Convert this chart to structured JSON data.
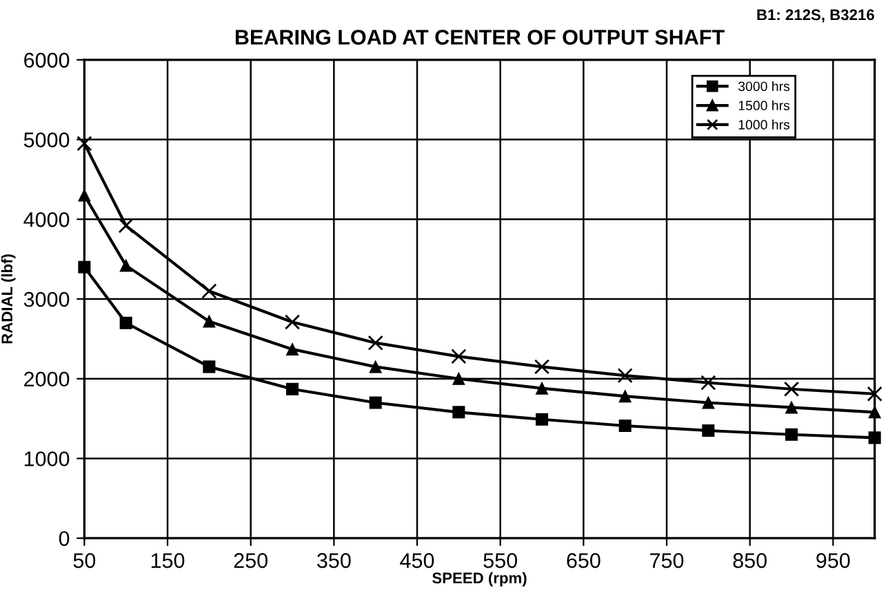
{
  "chart_data": {
    "type": "line",
    "title": "BEARING LOAD AT CENTER OF OUTPUT SHAFT",
    "subtitle": "B1: 212S, B3216",
    "xlabel": "SPEED (rpm)",
    "ylabel": "RADIAL (lbf)",
    "x": [
      50,
      100,
      200,
      300,
      400,
      500,
      600,
      700,
      800,
      900,
      1000
    ],
    "series": [
      {
        "name": "3000 hrs",
        "color": "#000000",
        "marker": "square",
        "values": [
          3400,
          2700,
          2150,
          1870,
          1700,
          1580,
          1490,
          1410,
          1350,
          1300,
          1260
        ]
      },
      {
        "name": "1500 hrs",
        "color": "#000000",
        "marker": "triangle",
        "values": [
          4300,
          3420,
          2720,
          2370,
          2150,
          2000,
          1880,
          1780,
          1700,
          1640,
          1580
        ]
      },
      {
        "name": "1000 hrs",
        "color": "#000000",
        "marker": "cross",
        "values": [
          4950,
          3920,
          3100,
          2710,
          2450,
          2280,
          2150,
          2040,
          1950,
          1870,
          1810
        ]
      }
    ],
    "xlim": [
      50,
      1000
    ],
    "xticks": [
      50,
      150,
      250,
      350,
      450,
      550,
      650,
      750,
      850,
      950
    ],
    "ylim": [
      0,
      6000
    ],
    "yticks": [
      0,
      1000,
      2000,
      3000,
      4000,
      5000,
      6000
    ],
    "grid": true,
    "legend": "top right",
    "line_style": "solid"
  }
}
